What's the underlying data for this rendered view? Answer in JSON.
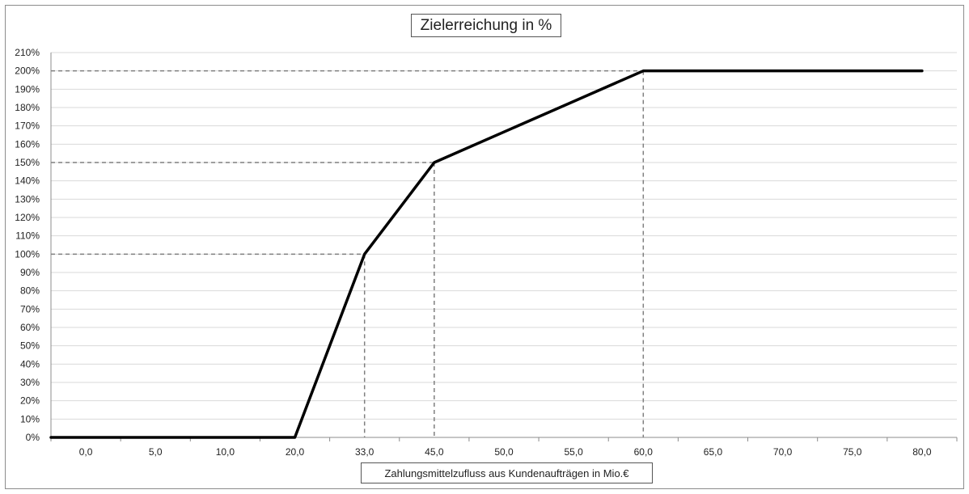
{
  "chart_data": {
    "type": "line",
    "title": "Zielerreichung in %",
    "xlabel": "Zahlungsmittelzufluss aus Kundenaufträgen in Mio.€",
    "ylabel": "",
    "x_tick_labels": [
      "0,0",
      "5,0",
      "10,0",
      "20,0",
      "33,0",
      "45,0",
      "50,0",
      "55,0",
      "60,0",
      "65,0",
      "70,0",
      "75,0",
      "80,0"
    ],
    "y_tick_labels": [
      "0%",
      "10%",
      "20%",
      "30%",
      "40%",
      "50%",
      "60%",
      "70%",
      "80%",
      "90%",
      "100%",
      "110%",
      "120%",
      "130%",
      "140%",
      "150%",
      "160%",
      "170%",
      "180%",
      "190%",
      "200%",
      "210%"
    ],
    "ylim": [
      0,
      2.1
    ],
    "grid": true,
    "series": [
      {
        "x": [
          "0,0",
          "20,0",
          "33,0",
          "45,0",
          "60,0",
          "80,0"
        ],
        "y": [
          0,
          0,
          1.0,
          1.5,
          2.0,
          2.0
        ]
      }
    ],
    "reference_lines": [
      {
        "x": "33,0",
        "y": 1.0
      },
      {
        "x": "45,0",
        "y": 1.5
      },
      {
        "x": "60,0",
        "y": 2.0
      }
    ],
    "colors": {
      "line": "#000000",
      "grid": "#d9d9d9",
      "reference": "#7f7f7f",
      "axis": "#8c8c8c"
    }
  }
}
